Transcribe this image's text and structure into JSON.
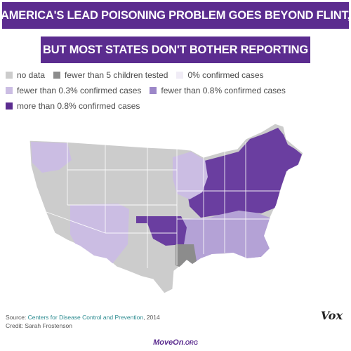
{
  "title": {
    "line1": "AMERICA'S LEAD POISONING PROBLEM GOES BEYOND FLINT,",
    "line2": "BUT MOST STATES DON'T BOTHER REPORTING"
  },
  "legend": [
    {
      "label": "no data",
      "color": "#cccccc"
    },
    {
      "label": "fewer than 5 children tested",
      "color": "#8c8c8c"
    },
    {
      "label": "0% confirmed cases",
      "color": "#f0ecf6"
    },
    {
      "label": "fewer than 0.3% confirmed cases",
      "color": "#cbbde3"
    },
    {
      "label": "fewer than 0.8% confirmed cases",
      "color": "#9c87c8"
    },
    {
      "label": "more than 0.8% confirmed cases",
      "color": "#5b2c8f"
    }
  ],
  "map": {
    "regions": [
      {
        "region": "Pacific Northwest",
        "category": "fewer than 0.3% confirmed cases"
      },
      {
        "region": "West (most)",
        "category": "no data"
      },
      {
        "region": "Southwest",
        "category": "fewer than 0.3% confirmed cases"
      },
      {
        "region": "Oklahoma",
        "category": "more than 0.8% confirmed cases"
      },
      {
        "region": "Louisiana",
        "category": "fewer than 5 children tested"
      },
      {
        "region": "Midwest & Northeast",
        "category": "more than 0.8% confirmed cases"
      },
      {
        "region": "Southeast",
        "category": "fewer than 0.8% confirmed cases"
      }
    ]
  },
  "footer": {
    "source_label": "Source:",
    "source_text": "Centers for Disease Control and Prevention",
    "source_year": ", 2014",
    "credit": "Credit: Sarah Frostenson"
  },
  "brand": {
    "vox": "Vox",
    "moveon": "MoveOn",
    "moveon_suffix": ".ORG"
  }
}
